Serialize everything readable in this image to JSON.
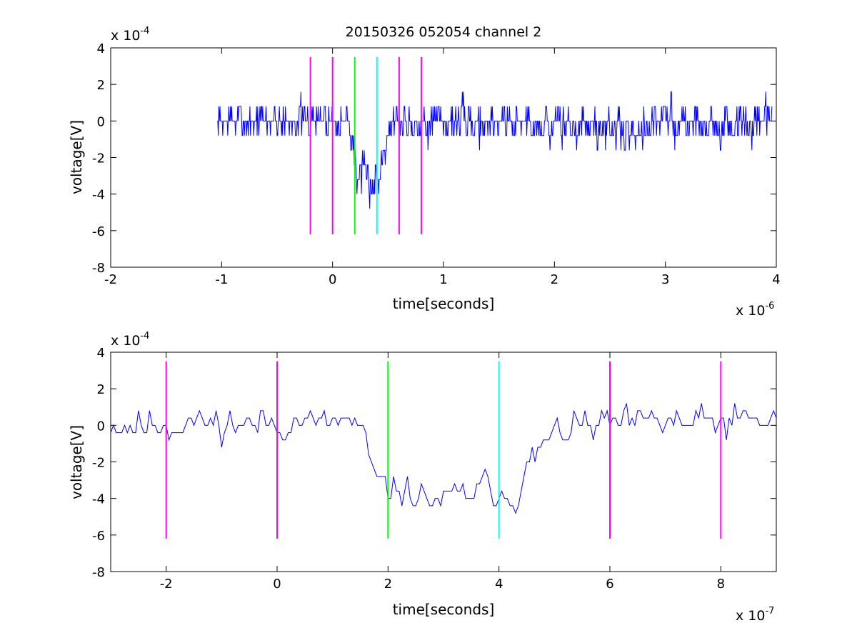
{
  "chart_data": [
    {
      "type": "line",
      "title": "20150326 052054 channel 2",
      "xlabel": "time[seconds]",
      "ylabel": "voltage[V]",
      "x_multiplier_text": "x 10",
      "x_multiplier_exp": "-6",
      "y_multiplier_text": "x 10",
      "y_multiplier_exp": "-4",
      "x_scale": 1e-06,
      "y_scale": 0.0001,
      "xlim": [
        -2,
        4
      ],
      "ylim": [
        -8,
        4
      ],
      "xticks": [
        -2,
        -1,
        0,
        1,
        2,
        3,
        4
      ],
      "xtick_labels": [
        "-2",
        "-1",
        "0",
        "1",
        "2",
        "3",
        "4"
      ],
      "yticks": [
        -8,
        -6,
        -4,
        -2,
        0,
        2,
        4
      ],
      "ytick_labels": [
        "-8",
        "-6",
        "-4",
        "-2",
        "0",
        "2",
        "4"
      ],
      "grid": false,
      "legend": "none",
      "series": [
        {
          "color": "#0000ff",
          "x_start": -1.04,
          "x_end": 3.96,
          "sample_step": 0.005,
          "quantum": 0.8,
          "noise_amp": 1.1,
          "profile": [
            [
              -1.04,
              -0.1
            ],
            [
              -0.9,
              0.0
            ],
            [
              0.13,
              0.1
            ],
            [
              0.18,
              -1.0
            ],
            [
              0.22,
              -3.0
            ],
            [
              0.36,
              -3.4
            ],
            [
              0.41,
              -3.3
            ],
            [
              0.48,
              -0.6
            ],
            [
              0.56,
              0.0
            ],
            [
              1.6,
              0.0
            ],
            [
              2.4,
              -0.4
            ],
            [
              2.7,
              -0.6
            ],
            [
              3.0,
              0.1
            ],
            [
              3.5,
              -0.3
            ],
            [
              3.96,
              -0.1
            ]
          ],
          "seed": 7,
          "y_range": [
            -6.0,
            3.2
          ]
        }
      ],
      "vlines": [
        {
          "x": -0.2,
          "color": "#ff00ff",
          "y0": -6.2,
          "y1": 3.5
        },
        {
          "x": 0.0,
          "color": "#ff00ff",
          "y0": -6.2,
          "y1": 3.5
        },
        {
          "x": 0.2,
          "color": "#00ff00",
          "y0": -6.2,
          "y1": 3.5
        },
        {
          "x": 0.4,
          "color": "#00ffff",
          "y0": -6.2,
          "y1": 3.5
        },
        {
          "x": 0.6,
          "color": "#ff00ff",
          "y0": -6.2,
          "y1": 3.5
        },
        {
          "x": 0.8,
          "color": "#ff00ff",
          "y0": -6.2,
          "y1": 3.5
        }
      ]
    },
    {
      "type": "line",
      "title": "",
      "xlabel": "time[seconds]",
      "ylabel": "voltage[V]",
      "x_multiplier_text": "x 10",
      "x_multiplier_exp": "-7",
      "y_multiplier_text": "x 10",
      "y_multiplier_exp": "-4",
      "x_scale": 1e-07,
      "y_scale": 0.0001,
      "xlim": [
        -3,
        9
      ],
      "ylim": [
        -8,
        4
      ],
      "xticks": [
        -2,
        0,
        2,
        4,
        6,
        8
      ],
      "xtick_labels": [
        "-2",
        "0",
        "2",
        "4",
        "6",
        "8"
      ],
      "yticks": [
        -8,
        -6,
        -4,
        -2,
        0,
        2,
        4
      ],
      "ytick_labels": [
        "-8",
        "-6",
        "-4",
        "-2",
        "0",
        "2",
        "4"
      ],
      "grid": false,
      "legend": "none",
      "series": [
        {
          "color": "#0000ff",
          "x_start": -3.0,
          "x_end": 9.0,
          "sample_step": 0.05,
          "quantum": 0.4,
          "noise_amp": 0.9,
          "profile": [
            [
              -3.0,
              0.0
            ],
            [
              1.4,
              0.2
            ],
            [
              1.6,
              -1.0
            ],
            [
              1.8,
              -3.2
            ],
            [
              2.6,
              -4.0
            ],
            [
              3.0,
              -4.2
            ],
            [
              3.8,
              -3.4
            ],
            [
              4.3,
              -3.8
            ],
            [
              4.6,
              -2.0
            ],
            [
              4.9,
              -0.6
            ],
            [
              5.5,
              0.0
            ],
            [
              9.0,
              0.2
            ]
          ],
          "seed": 11,
          "y_range": [
            -5.7,
            2.4
          ]
        }
      ],
      "vlines": [
        {
          "x": -2.0,
          "color": "#ff00ff",
          "y0": -6.2,
          "y1": 3.5
        },
        {
          "x": 0.0,
          "color": "#ff00ff",
          "y0": -6.2,
          "y1": 3.5
        },
        {
          "x": 2.0,
          "color": "#00ff00",
          "y0": -6.2,
          "y1": 3.5
        },
        {
          "x": 4.0,
          "color": "#00ffff",
          "y0": -6.2,
          "y1": 3.5
        },
        {
          "x": 6.0,
          "color": "#ff00ff",
          "y0": -6.2,
          "y1": 3.5
        },
        {
          "x": 8.0,
          "color": "#ff00ff",
          "y0": -6.2,
          "y1": 3.5
        }
      ]
    }
  ]
}
